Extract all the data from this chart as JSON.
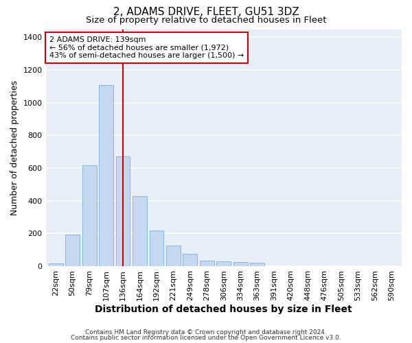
{
  "title": "2, ADAMS DRIVE, FLEET, GU51 3DZ",
  "subtitle": "Size of property relative to detached houses in Fleet",
  "xlabel": "Distribution of detached houses by size in Fleet",
  "ylabel": "Number of detached properties",
  "categories": [
    "22sqm",
    "50sqm",
    "79sqm",
    "107sqm",
    "136sqm",
    "164sqm",
    "192sqm",
    "221sqm",
    "249sqm",
    "278sqm",
    "306sqm",
    "334sqm",
    "363sqm",
    "391sqm",
    "420sqm",
    "448sqm",
    "476sqm",
    "505sqm",
    "533sqm",
    "562sqm",
    "590sqm"
  ],
  "values": [
    15,
    195,
    615,
    1110,
    670,
    430,
    220,
    125,
    75,
    35,
    30,
    25,
    20,
    0,
    0,
    0,
    0,
    0,
    0,
    0,
    0
  ],
  "bar_color": "#c5d8f0",
  "bar_edge_color": "#7aafd4",
  "background_color": "#e8eef8",
  "grid_color": "#ffffff",
  "vline_x_index": 4,
  "vline_color": "#cc0000",
  "annotation_text": "2 ADAMS DRIVE: 139sqm\n← 56% of detached houses are smaller (1,972)\n43% of semi-detached houses are larger (1,500) →",
  "annotation_box_color": "white",
  "annotation_edge_color": "#cc0000",
  "ylim": [
    0,
    1450
  ],
  "yticks": [
    0,
    200,
    400,
    600,
    800,
    1000,
    1200,
    1400
  ],
  "footer1": "Contains HM Land Registry data © Crown copyright and database right 2024.",
  "footer2": "Contains public sector information licensed under the Open Government Licence v3.0.",
  "title_fontsize": 11,
  "subtitle_fontsize": 9.5,
  "xlabel_fontsize": 10,
  "ylabel_fontsize": 9,
  "tick_fontsize": 8,
  "annotation_fontsize": 8,
  "footer_fontsize": 6.5
}
